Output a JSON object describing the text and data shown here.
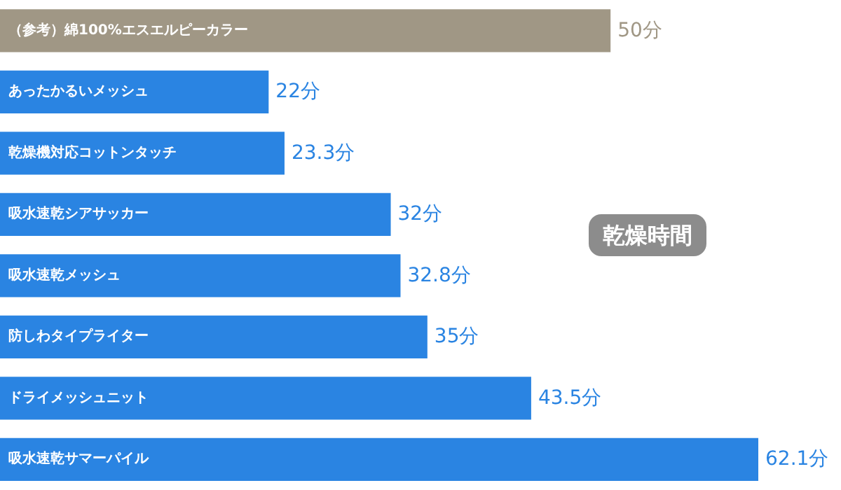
{
  "chart_data": {
    "type": "bar",
    "orientation": "horizontal",
    "title": "乾燥時間",
    "categories": [
      "（参考）綿100%エスエルピーカラー",
      "あったかるいメッシュ",
      "乾燥機対応コットンタッチ",
      "吸水速乾シアサッカー",
      "吸水速乾メッシュ",
      "防しわタイプライター",
      "ドライメッシュニット",
      "吸水速乾サマーパイル"
    ],
    "values": [
      50,
      22,
      23.3,
      32,
      32.8,
      35,
      43.5,
      62.1
    ],
    "colors": [
      "#a09785",
      "#2a84e2",
      "#2a84e2",
      "#2a84e2",
      "#2a84e2",
      "#2a84e2",
      "#2a84e2",
      "#2a84e2"
    ],
    "value_labels": [
      "50分",
      "22分",
      "23.3分",
      "32分",
      "32.8分",
      "35分",
      "43.5分",
      "62.1分"
    ]
  }
}
